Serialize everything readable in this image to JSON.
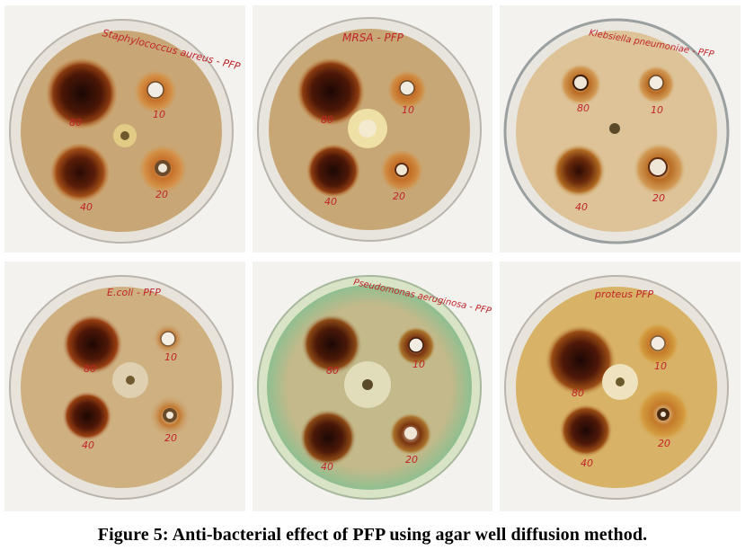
{
  "figure": {
    "caption": "Figure 5: Anti-bacterial effect of PFP using agar well diffusion method."
  },
  "plates": [
    {
      "label": "Staphylococcus aureus - PFP",
      "wells": [
        "80",
        "10",
        "40",
        "20"
      ],
      "agar": "#c9a675",
      "rim": "#e7e3da"
    },
    {
      "label": "MRSA - PFP",
      "wells": [
        "80",
        "10",
        "40",
        "20"
      ],
      "agar": "#c8a776",
      "rim": "#e8e5de"
    },
    {
      "label": "Klebsiella pneumoniae - PFP",
      "wells": [
        "80",
        "10",
        "40",
        "20"
      ],
      "agar": "#ddc397",
      "rim": "#e9e6df"
    },
    {
      "label": "E.coli - PFP",
      "wells": [
        "80",
        "10",
        "40",
        "20"
      ],
      "agar": "#cfb081",
      "rim": "#e8e4dc"
    },
    {
      "label": "Pseudomonas aeruginosa - PFP",
      "wells": [
        "80",
        "10",
        "40",
        "20"
      ],
      "agar": "#c3b98a",
      "rim": "#d9e4c7"
    },
    {
      "label": "proteus PFP",
      "wells": [
        "80",
        "10",
        "40",
        "20"
      ],
      "agar": "#d8b266",
      "rim": "#e8e4db"
    }
  ]
}
